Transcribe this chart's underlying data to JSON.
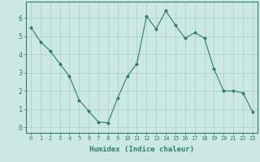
{
  "x": [
    0,
    1,
    2,
    3,
    4,
    5,
    6,
    7,
    8,
    9,
    10,
    11,
    12,
    13,
    14,
    15,
    16,
    17,
    18,
    19,
    20,
    21,
    22,
    23
  ],
  "y": [
    5.5,
    4.7,
    4.2,
    3.5,
    2.8,
    1.5,
    0.9,
    0.3,
    0.25,
    1.6,
    2.8,
    3.5,
    6.1,
    5.4,
    6.4,
    5.6,
    4.9,
    5.2,
    4.9,
    3.2,
    2.0,
    2.0,
    1.9,
    0.85
  ],
  "line_color": "#2e7d6e",
  "marker": "D",
  "marker_size": 2.0,
  "background_color": "#cce8e4",
  "grid_color": "#aacfca",
  "xlabel": "Humidex (Indice chaleur)",
  "xlim": [
    -0.5,
    23.5
  ],
  "ylim": [
    -0.3,
    6.9
  ],
  "yticks": [
    0,
    1,
    2,
    3,
    4,
    5,
    6
  ],
  "xticks": [
    0,
    1,
    2,
    3,
    4,
    5,
    6,
    7,
    8,
    9,
    10,
    11,
    12,
    13,
    14,
    15,
    16,
    17,
    18,
    19,
    20,
    21,
    22,
    23
  ],
  "axis_color": "#2e7d6e",
  "tick_color": "#2e7d6e",
  "xlabel_fontsize": 6.5,
  "xtick_fontsize": 5.0,
  "ytick_fontsize": 6.0
}
